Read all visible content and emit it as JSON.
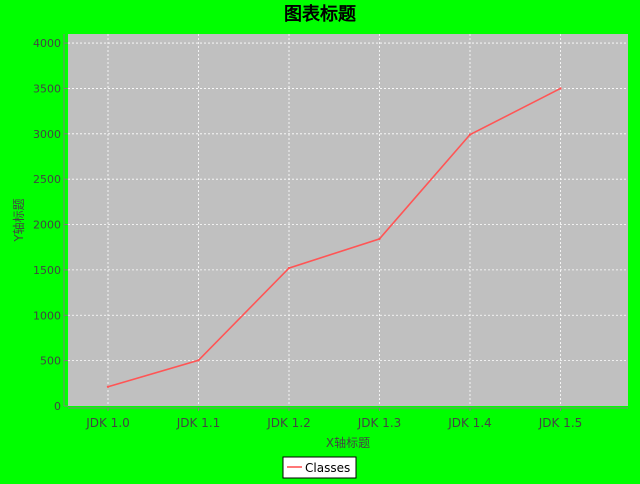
{
  "chart_data": {
    "type": "line",
    "title": "图表标题",
    "xlabel": "X轴标题",
    "ylabel": "Y轴标题",
    "categories": [
      "JDK 1.0",
      "JDK 1.1",
      "JDK 1.2",
      "JDK 1.3",
      "JDK 1.4",
      "JDK 1.5"
    ],
    "series": [
      {
        "name": "Classes",
        "values": [
          212,
          504,
          1520,
          1842,
          2991,
          3500
        ],
        "color": "#ff5555"
      }
    ],
    "ylim": [
      0,
      4100
    ],
    "yticks": [
      0,
      500,
      1000,
      1500,
      2000,
      2500,
      3000,
      3500,
      4000
    ],
    "grid": true,
    "legend_position": "bottom",
    "colors": {
      "background": "#00ff00",
      "plot_background": "#c0c0c0",
      "gridline": "#ffffff",
      "axis": "#808080",
      "text": "#444444",
      "title": "#000000"
    }
  }
}
